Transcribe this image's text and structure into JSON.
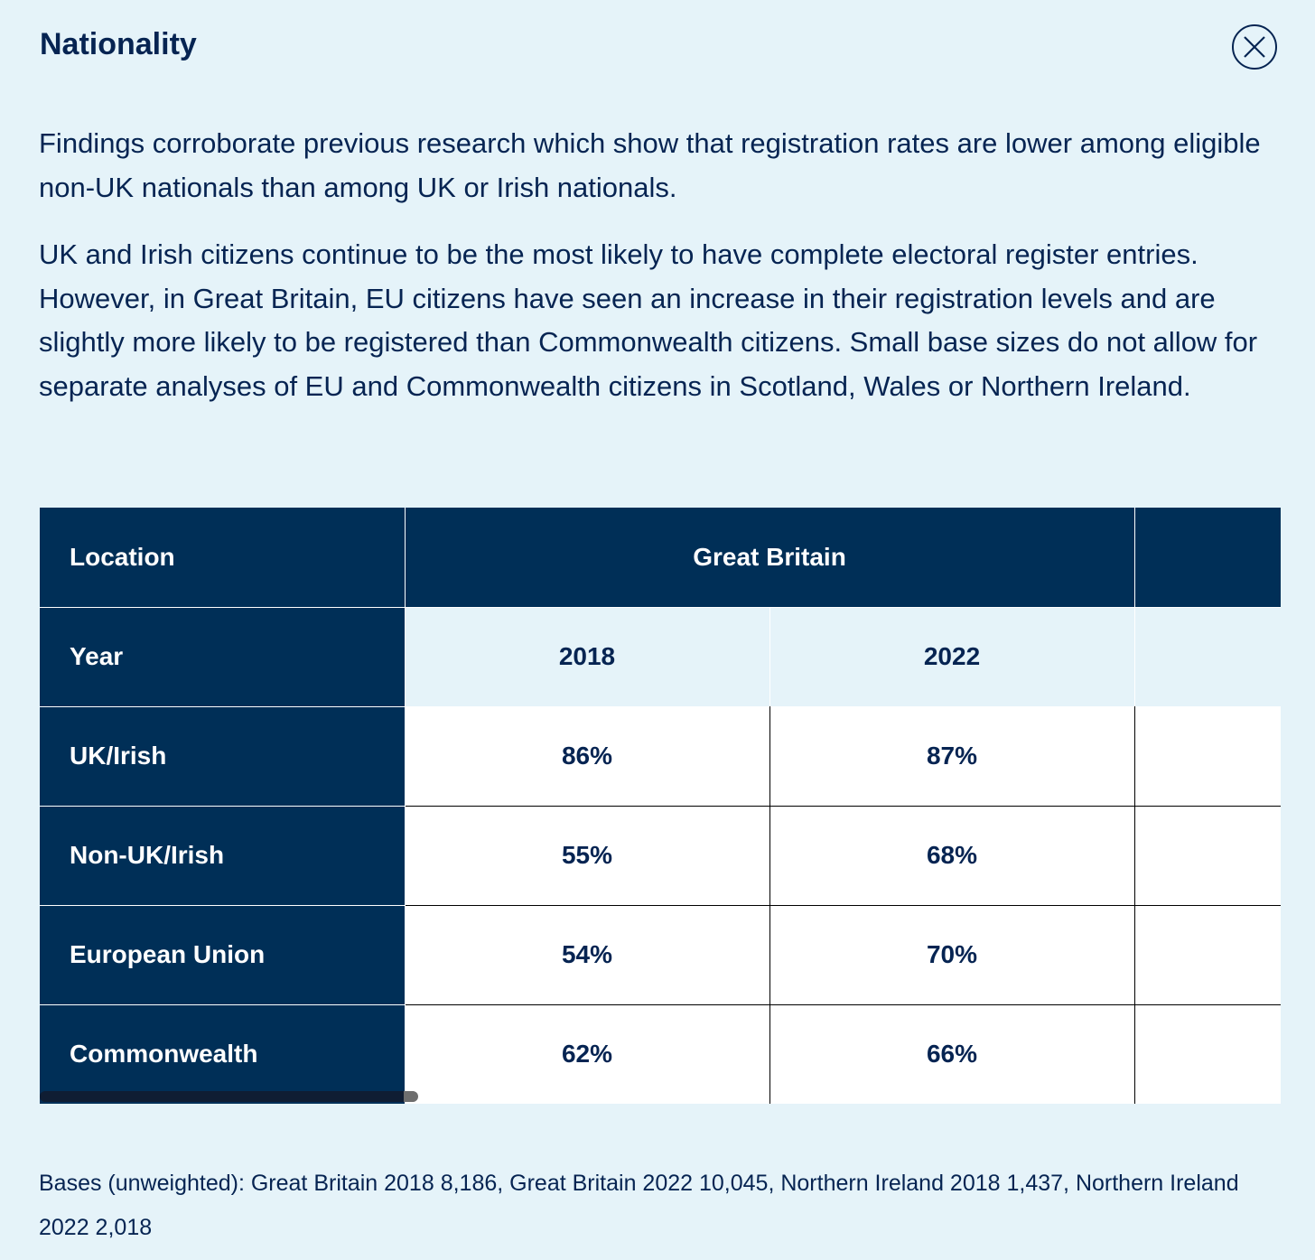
{
  "dialog": {
    "title": "Nationality",
    "close_label": "Close"
  },
  "paragraphs": [
    "Findings corroborate previous research which show that registration rates are lower among eligible non-UK nationals than among UK or Irish nationals.",
    "UK and Irish citizens continue to be the most likely to have complete electoral register entries. However, in Great Britain, EU citizens have seen an increase in their registration levels and are slightly more likely to be registered than Commonwealth citizens. Small base sizes do not allow for separate analyses of EU and Commonwealth citizens in Scotland, Wales or Northern Ireland."
  ],
  "table": {
    "location_label": "Location",
    "location_group": "Great Britain",
    "location_group_next": "",
    "year_label": "Year",
    "years": [
      "2018",
      "2022",
      ""
    ],
    "rows": [
      {
        "label": "UK/Irish",
        "values": [
          "86%",
          "87%",
          ""
        ]
      },
      {
        "label": "Non-UK/Irish",
        "values": [
          "55%",
          "68%",
          ""
        ]
      },
      {
        "label": "European Union",
        "values": [
          "54%",
          "70%",
          ""
        ]
      },
      {
        "label": "Commonwealth",
        "values": [
          "62%",
          "66%",
          ""
        ]
      }
    ]
  },
  "footer": {
    "bases": "Bases (unweighted): Great Britain 2018 8,186, Great Britain 2022 10,045, Northern Ireland 2018 1,437, Northern Ireland 2022 2,018"
  },
  "colors": {
    "background": "#e5f3f9",
    "navy": "#002f57",
    "text": "#062452",
    "white": "#ffffff"
  }
}
